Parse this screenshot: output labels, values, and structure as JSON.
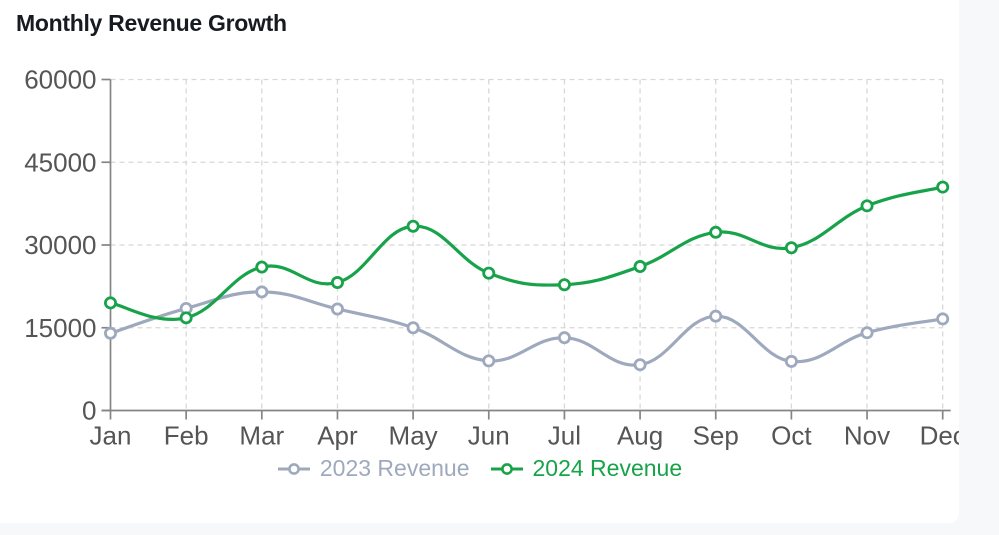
{
  "title": "Monthly Revenue Growth",
  "colors": {
    "series_2023": "#9fa9bd",
    "series_2024": "#18a34b",
    "grid_line": "#d8d8d8",
    "axis_line": "#858585",
    "tick_text": "#555555",
    "title_text": "#171a21",
    "page_background": "#f7f8fa",
    "card_background": "#ffffff"
  },
  "legend": {
    "items": [
      {
        "label": "2023 Revenue",
        "color": "#9fa9bd"
      },
      {
        "label": "2024 Revenue",
        "color": "#18a34b"
      }
    ]
  },
  "chart_data": {
    "type": "line",
    "title": "Monthly Revenue Growth",
    "x": [
      "Jan",
      "Feb",
      "Mar",
      "Apr",
      "May",
      "Jun",
      "Jul",
      "Aug",
      "Sep",
      "Oct",
      "Nov",
      "Dec"
    ],
    "series": [
      {
        "name": "2023 Revenue",
        "color": "#9fa9bd",
        "values": [
          14000,
          18500,
          21500,
          18400,
          15000,
          9000,
          13200,
          8300,
          17100,
          8900,
          14100,
          16600
        ]
      },
      {
        "name": "2024 Revenue",
        "color": "#18a34b",
        "values": [
          19500,
          16800,
          26000,
          23200,
          33400,
          24900,
          22800,
          26100,
          32300,
          29500,
          37100,
          40500
        ]
      }
    ],
    "ylim": [
      0,
      60000
    ],
    "yticks": [
      0,
      15000,
      30000,
      45000,
      60000
    ],
    "ytick_labels": [
      "0",
      "15000",
      "30000",
      "45000",
      "60000"
    ],
    "grid": "dashed",
    "smooth": true,
    "point_style": "open-circle",
    "legend_position": "bottom"
  }
}
